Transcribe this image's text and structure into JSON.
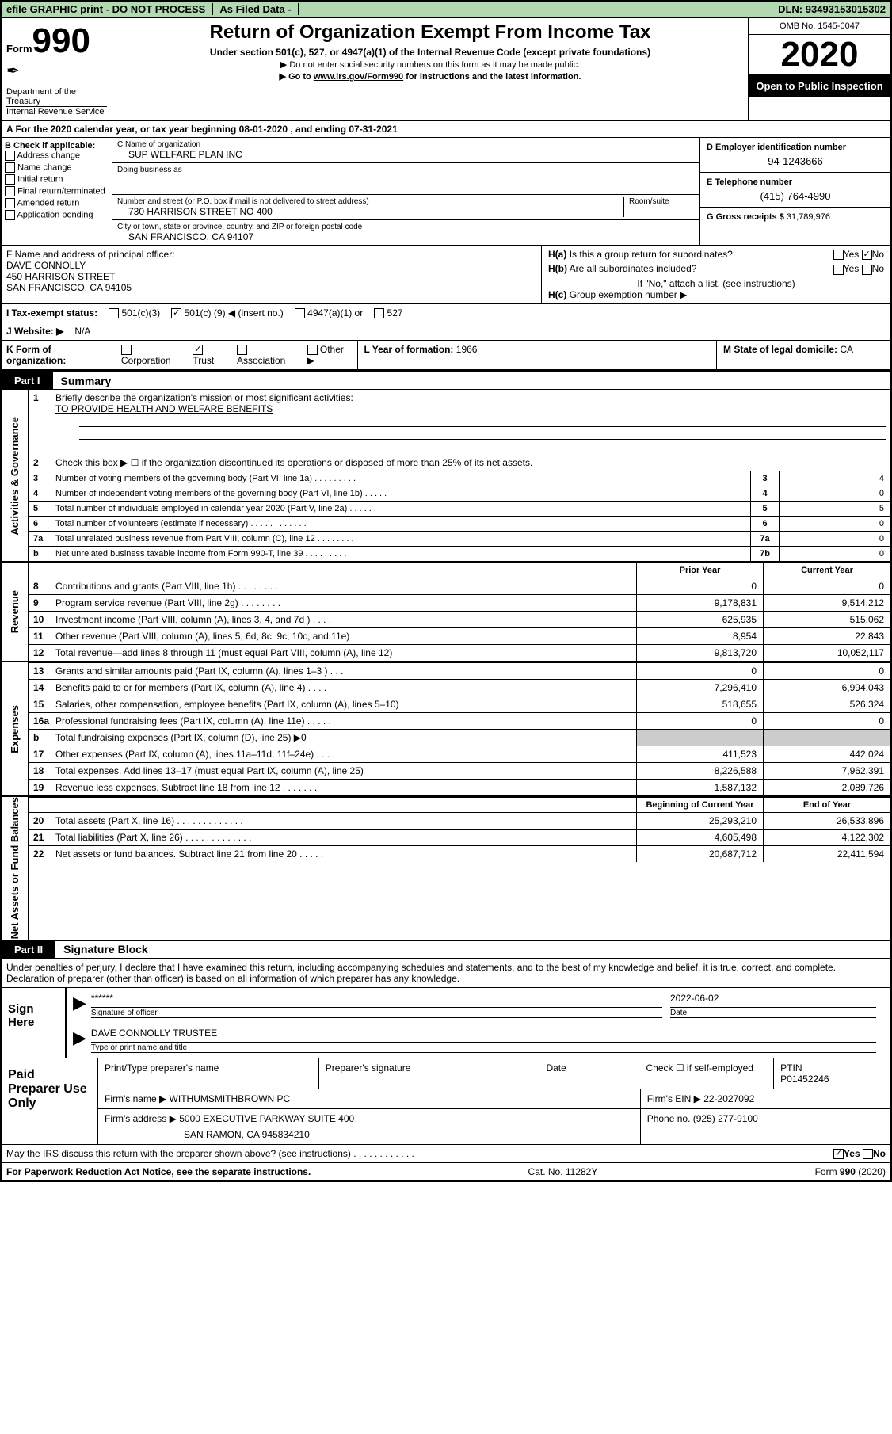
{
  "topbar": {
    "efile": "efile GRAPHIC print - DO NOT PROCESS",
    "asfiled": "As Filed Data -",
    "dln_label": "DLN:",
    "dln": "93493153015302"
  },
  "header": {
    "form_prefix": "Form",
    "form_num": "990",
    "dept": "Department of the Treasury",
    "irs": "Internal Revenue Service",
    "title": "Return of Organization Exempt From Income Tax",
    "subtitle": "Under section 501(c), 527, or 4947(a)(1) of the Internal Revenue Code (except private foundations)",
    "hint1": "▶ Do not enter social security numbers on this form as it may be made public.",
    "hint2a": "▶ Go to ",
    "hint2_link": "www.irs.gov/Form990",
    "hint2b": " for instructions and the latest information.",
    "omb": "OMB No. 1545-0047",
    "year": "2020",
    "open": "Open to Public Inspection"
  },
  "lineA": "A   For the 2020 calendar year, or tax year beginning 08-01-2020   , and ending 07-31-2021",
  "b": {
    "label": "B Check if applicable:",
    "items": [
      "Address change",
      "Name change",
      "Initial return",
      "Final return/terminated",
      "Amended return",
      "Application pending"
    ]
  },
  "c": {
    "name_lbl": "C Name of organization",
    "name": "SUP WELFARE PLAN INC",
    "dba_lbl": "Doing business as",
    "dba": "",
    "addr_lbl": "Number and street (or P.O. box if mail is not delivered to street address)",
    "room_lbl": "Room/suite",
    "addr": "730 HARRISON STREET NO 400",
    "city_lbl": "City or town, state or province, country, and ZIP or foreign postal code",
    "city": "SAN FRANCISCO, CA  94107"
  },
  "d": {
    "lbl": "D Employer identification number",
    "val": "94-1243666"
  },
  "e": {
    "lbl": "E Telephone number",
    "val": "(415) 764-4990"
  },
  "g": {
    "lbl": "G Gross receipts $",
    "val": "31,789,976"
  },
  "f": {
    "lbl": "F   Name and address of principal officer:",
    "name": "DAVE CONNOLLY",
    "addr1": "450 HARRISON STREET",
    "addr2": "SAN FRANCISCO, CA  94105"
  },
  "h": {
    "a": "Is this a group return for subordinates?",
    "a_yes": "Yes",
    "a_no": "No",
    "b": "Are all subordinates included?",
    "b_hint": "If \"No,\" attach a list. (see instructions)",
    "c": "Group exemption number ▶"
  },
  "i": {
    "lbl": "I   Tax-exempt status:",
    "o1": "501(c)(3)",
    "o2a": "501(c) (",
    "o2b": "9",
    "o2c": ") ◀ (insert no.)",
    "o3": "4947(a)(1) or",
    "o4": "527"
  },
  "j": {
    "lbl": "J   Website: ▶",
    "val": "N/A"
  },
  "k": {
    "lbl": "K Form of organization:",
    "opts": [
      "Corporation",
      "Trust",
      "Association",
      "Other ▶"
    ]
  },
  "l": {
    "lbl": "L Year of formation:",
    "val": "1966"
  },
  "m": {
    "lbl": "M State of legal domicile:",
    "val": "CA"
  },
  "part1": {
    "tag": "Part I",
    "title": "Summary"
  },
  "gov": {
    "side": "Activities & Governance",
    "l1": "Briefly describe the organization's mission or most significant activities:",
    "l1v": "TO PROVIDE HEALTH AND WELFARE BENEFITS",
    "l2": "Check this box ▶ ☐  if the organization discontinued its operations or disposed of more than 25% of its net assets.",
    "rows": [
      {
        "n": "3",
        "label": "Number of voting members of the governing body (Part VI, line 1a)   .    .    .    .    .    .    .    .    .",
        "cn": "3",
        "v": "4"
      },
      {
        "n": "4",
        "label": "Number of independent voting members of the governing body (Part VI, line 1b)    .    .    .    .    .",
        "cn": "4",
        "v": "0"
      },
      {
        "n": "5",
        "label": "Total number of individuals employed in calendar year 2020 (Part V, line 2a)  .    .    .    .    .    .",
        "cn": "5",
        "v": "5"
      },
      {
        "n": "6",
        "label": "Total number of volunteers (estimate if necessary)   .    .    .    .    .    .    .    .    .    .    .    .",
        "cn": "6",
        "v": "0"
      },
      {
        "n": "7a",
        "label": "Total unrelated business revenue from Part VIII, column (C), line 12   .    .    .    .    .    .    .    .",
        "cn": "7a",
        "v": "0"
      },
      {
        "n": "b",
        "label": "Net unrelated business taxable income from Form 990-T, line 39    .    .    .    .    .    .    .    .    .",
        "cn": "7b",
        "v": "0"
      }
    ]
  },
  "rev": {
    "side": "Revenue",
    "hdr_prior": "Prior Year",
    "hdr_curr": "Current Year",
    "rows": [
      {
        "n": "8",
        "label": "Contributions and grants (Part VIII, line 1h)   .    .    .    .    .    .    .    .",
        "p": "0",
        "c": "0"
      },
      {
        "n": "9",
        "label": "Program service revenue (Part VIII, line 2g)   .    .    .    .    .    .    .    .",
        "p": "9,178,831",
        "c": "9,514,212"
      },
      {
        "n": "10",
        "label": "Investment income (Part VIII, column (A), lines 3, 4, and 7d )    .    .    .    .",
        "p": "625,935",
        "c": "515,062"
      },
      {
        "n": "11",
        "label": "Other revenue (Part VIII, column (A), lines 5, 6d, 8c, 9c, 10c, and 11e)",
        "p": "8,954",
        "c": "22,843"
      },
      {
        "n": "12",
        "label": "Total revenue—add lines 8 through 11 (must equal Part VIII, column (A), line 12)",
        "p": "9,813,720",
        "c": "10,052,117"
      }
    ]
  },
  "exp": {
    "side": "Expenses",
    "rows": [
      {
        "n": "13",
        "label": "Grants and similar amounts paid (Part IX, column (A), lines 1–3 )  .    .    .",
        "p": "0",
        "c": "0"
      },
      {
        "n": "14",
        "label": "Benefits paid to or for members (Part IX, column (A), line 4)  .    .    .    .",
        "p": "7,296,410",
        "c": "6,994,043"
      },
      {
        "n": "15",
        "label": "Salaries, other compensation, employee benefits (Part IX, column (A), lines 5–10)",
        "p": "518,655",
        "c": "526,324"
      },
      {
        "n": "16a",
        "label": "Professional fundraising fees (Part IX, column (A), line 11e)  .    .    .    .    .",
        "p": "0",
        "c": "0"
      },
      {
        "n": "b",
        "label": "Total fundraising expenses (Part IX, column (D), line 25) ▶0",
        "p": "",
        "c": ""
      },
      {
        "n": "17",
        "label": "Other expenses (Part IX, column (A), lines 11a–11d, 11f–24e)   .    .    .    .",
        "p": "411,523",
        "c": "442,024"
      },
      {
        "n": "18",
        "label": "Total expenses. Add lines 13–17 (must equal Part IX, column (A), line 25)",
        "p": "8,226,588",
        "c": "7,962,391"
      },
      {
        "n": "19",
        "label": "Revenue less expenses. Subtract line 18 from line 12  .    .    .    .    .    .    .",
        "p": "1,587,132",
        "c": "2,089,726"
      }
    ]
  },
  "net": {
    "side": "Net Assets or Fund Balances",
    "hdr_beg": "Beginning of Current Year",
    "hdr_end": "End of Year",
    "rows": [
      {
        "n": "20",
        "label": "Total assets (Part X, line 16)    .    .    .    .    .    .    .    .    .    .    .    .    .",
        "p": "25,293,210",
        "c": "26,533,896"
      },
      {
        "n": "21",
        "label": "Total liabilities (Part X, line 26)  .    .    .    .    .    .    .    .    .    .    .    .    .",
        "p": "4,605,498",
        "c": "4,122,302"
      },
      {
        "n": "22",
        "label": "Net assets or fund balances. Subtract line 21 from line 20  .    .    .    .    .",
        "p": "20,687,712",
        "c": "22,411,594"
      }
    ]
  },
  "part2": {
    "tag": "Part II",
    "title": "Signature Block"
  },
  "sig": {
    "perjury": "Under penalties of perjury, I declare that I have examined this return, including accompanying schedules and statements, and to the best of my knowledge and belief, it is true, correct, and complete. Declaration of preparer (other than officer) is based on all information of which preparer has any knowledge.",
    "sign_here": "Sign Here",
    "stars": "******",
    "sig_lbl": "Signature of officer",
    "date": "2022-06-02",
    "date_lbl": "Date",
    "name": "DAVE CONNOLLY TRUSTEE",
    "type_lbl": "Type or print name and title"
  },
  "prep": {
    "side": "Paid Preparer Use Only",
    "pname_lbl": "Print/Type preparer's name",
    "psig_lbl": "Preparer's signature",
    "pdate_lbl": "Date",
    "check_lbl": "Check ☐ if self-employed",
    "ptin_lbl": "PTIN",
    "ptin": "P01452246",
    "firm_lbl": "Firm's name    ▶",
    "firm": "WITHUMSMITHBROWN PC",
    "ein_lbl": "Firm's EIN ▶",
    "ein": "22-2027092",
    "addr_lbl": "Firm's address ▶",
    "addr1": "5000 EXECUTIVE PARKWAY SUITE 400",
    "addr2": "SAN RAMON, CA  945834210",
    "phone_lbl": "Phone no.",
    "phone": "(925) 277-9100"
  },
  "footer": {
    "discuss": "May the IRS discuss this return with the preparer shown above? (see instructions)    .    .    .    .    .    .    .    .    .    .    .    .",
    "yes": "Yes",
    "no": "No",
    "pra": "For Paperwork Reduction Act Notice, see the separate instructions.",
    "cat": "Cat. No. 11282Y",
    "form": "Form 990 (2020)"
  }
}
